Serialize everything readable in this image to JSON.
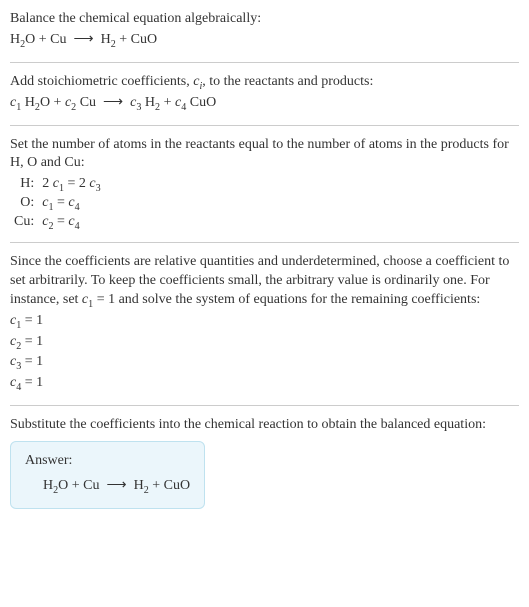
{
  "colors": {
    "text": "#333333",
    "rule": "#cccccc",
    "answer_bg": "#ebf6fb",
    "answer_border": "#bfe2ef"
  },
  "typography": {
    "font_family": "Georgia, 'Times New Roman', serif",
    "base_fontsize_pt": 11,
    "sub_scale": 0.72
  },
  "section1": {
    "prompt": "Balance the chemical equation algebraically:",
    "equation_html": "H<span class=\"sub\">2</span>O + Cu &nbsp;⟶&nbsp; H<span class=\"sub\">2</span> + CuO"
  },
  "section2": {
    "intro_html": "Add stoichiometric coefficients, <span class=\"italic\">c<span class=\"sub\">i</span></span>, to the reactants and products:",
    "equation_html": "<span class=\"italic\">c</span><span class=\"sub\">1</span> H<span class=\"sub\">2</span>O + <span class=\"italic\">c</span><span class=\"sub\">2</span> Cu &nbsp;⟶&nbsp; <span class=\"italic\">c</span><span class=\"sub\">3</span> H<span class=\"sub\">2</span> + <span class=\"italic\">c</span><span class=\"sub\">4</span> CuO"
  },
  "section3": {
    "intro": "Set the number of atoms in the reactants equal to the number of atoms in the products for H, O and Cu:",
    "rows": [
      {
        "label": "H:",
        "eq_html": "2 <span class=\"italic\">c</span><span class=\"sub\">1</span> = 2 <span class=\"italic\">c</span><span class=\"sub\">3</span>"
      },
      {
        "label": "O:",
        "eq_html": "<span class=\"italic\">c</span><span class=\"sub\">1</span> = <span class=\"italic\">c</span><span class=\"sub\">4</span>"
      },
      {
        "label": "Cu:",
        "eq_html": "<span class=\"italic\">c</span><span class=\"sub\">2</span> = <span class=\"italic\">c</span><span class=\"sub\">4</span>"
      }
    ]
  },
  "section4": {
    "intro_html": "Since the coefficients are relative quantities and underdetermined, choose a coefficient to set arbitrarily. To keep the coefficients small, the arbitrary value is ordinarily one. For instance, set <span class=\"italic\">c</span><span class=\"sub\">1</span> = 1 and solve the system of equations for the remaining coefficients:",
    "lines": [
      "<span class=\"italic\">c</span><span class=\"sub\">1</span> = 1",
      "<span class=\"italic\">c</span><span class=\"sub\">2</span> = 1",
      "<span class=\"italic\">c</span><span class=\"sub\">3</span> = 1",
      "<span class=\"italic\">c</span><span class=\"sub\">4</span> = 1"
    ]
  },
  "section5": {
    "intro": "Substitute the coefficients into the chemical reaction to obtain the balanced equation:",
    "answer_title": "Answer:",
    "answer_eq_html": "H<span class=\"sub\">2</span>O + Cu &nbsp;⟶&nbsp; H<span class=\"sub\">2</span> + CuO"
  }
}
